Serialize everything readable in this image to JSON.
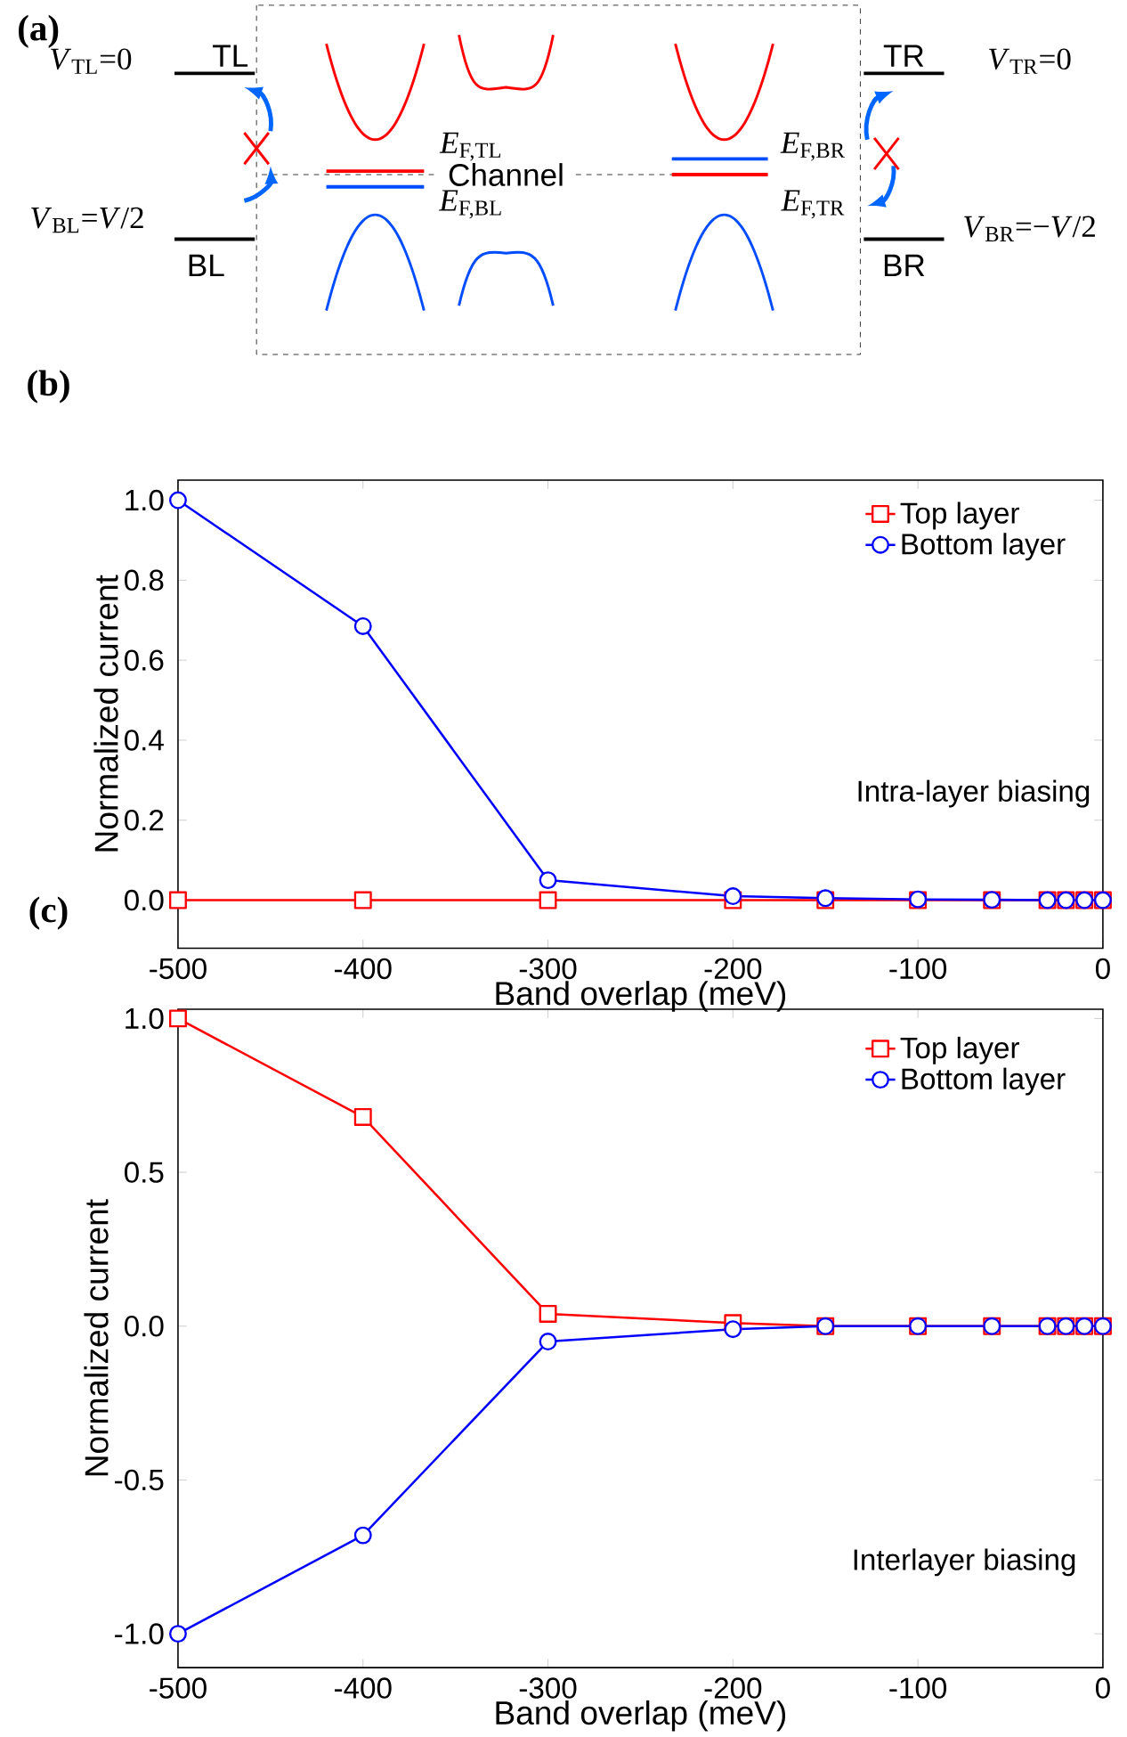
{
  "chart_data": [
    {
      "type": "other",
      "title": "(a)",
      "annotations": [
        "TL",
        "BL",
        "TR",
        "BR",
        "Channel",
        "*V*$_{TL}$=0",
        "*V*$_{BL}$=*V*/2",
        "*V*$_{TR}$=0",
        "*V*$_{BR}$=−*V*/2",
        "*E*$_{F,TL}$",
        "*E*$_{F,BL}$",
        "*E*$_{F,BR}$",
        "*E*$_{F,TR}$"
      ]
    },
    {
      "type": "line",
      "title": "(b)",
      "xlabel": "Band overlap (meV)",
      "ylabel": "Normalized current",
      "annotations": [
        "Intra-layer biasing"
      ],
      "x": [
        -500,
        -400,
        -300,
        -200,
        -150,
        -100,
        -60,
        -30,
        -20,
        -10,
        0
      ],
      "series": [
        {
          "name": "Top layer",
          "color": "#ff0000",
          "marker": "square",
          "values": [
            0,
            0,
            0,
            0,
            0,
            0,
            0,
            0,
            0,
            0,
            0
          ]
        },
        {
          "name": "Bottom layer",
          "color": "#0000ff",
          "marker": "circle",
          "values": [
            1.0,
            0.685,
            0.05,
            0.01,
            0.005,
            0.002,
            0.001,
            0,
            0,
            0,
            0
          ]
        }
      ],
      "xlim": [
        -500,
        0
      ],
      "xticks": [
        -500,
        -400,
        -300,
        -200,
        -100,
        0
      ],
      "ylim": [
        -0.12,
        1.05
      ],
      "yticks": [
        {
          "value": 0,
          "label": "0.0"
        },
        {
          "value": 0.2,
          "label": "0.2"
        },
        {
          "value": 0.4,
          "label": "0.4"
        },
        {
          "value": 0.6,
          "label": "0.6"
        },
        {
          "value": 0.8,
          "label": "0.8"
        },
        {
          "value": 1.0,
          "label": "1.0"
        }
      ],
      "legend": "top right",
      "line_style": "solid"
    },
    {
      "type": "line",
      "title": "(c)",
      "xlabel": "Band overlap (meV)",
      "ylabel": "Normalized current",
      "annotations": [
        "Interlayer biasing"
      ],
      "x": [
        -500,
        -400,
        -300,
        -200,
        -150,
        -100,
        -60,
        -30,
        -20,
        -10,
        0
      ],
      "series": [
        {
          "name": "Top layer",
          "color": "#ff0000",
          "marker": "square",
          "values": [
            1.0,
            0.68,
            0.04,
            0.01,
            0,
            0,
            0,
            0,
            0,
            0,
            0
          ]
        },
        {
          "name": "Bottom layer",
          "color": "#0000ff",
          "marker": "circle",
          "values": [
            -1.0,
            -0.68,
            -0.05,
            -0.01,
            0,
            0,
            0,
            0,
            0,
            0,
            0
          ]
        }
      ],
      "xlim": [
        -500,
        0
      ],
      "xticks": [
        -500,
        -400,
        -300,
        -200,
        -100,
        0
      ],
      "ylim": [
        -1.11,
        1.03
      ],
      "yticks": [
        {
          "value": -1.0,
          "label": "-1.0"
        },
        {
          "value": -0.5,
          "label": "-0.5"
        },
        {
          "value": 0,
          "label": "0.0"
        },
        {
          "value": 0.5,
          "label": "0.5"
        },
        {
          "value": 1.0,
          "label": "1.0"
        }
      ],
      "legend": "top right",
      "line_style": "solid"
    }
  ]
}
